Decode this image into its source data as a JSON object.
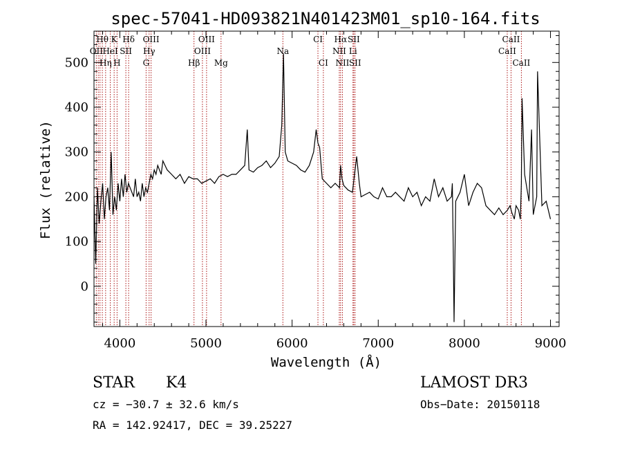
{
  "chart_data": {
    "type": "line",
    "title": "spec-57041-HD093821N401423M01_sp10-164.fits",
    "xlabel": "Wavelength (Å)",
    "ylabel": "Flux (relative)",
    "xlim": [
      3700,
      9100
    ],
    "ylim": [
      -90,
      570
    ],
    "x_ticks": [
      4000,
      5000,
      6000,
      7000,
      8000,
      9000
    ],
    "y_ticks": [
      0,
      100,
      200,
      300,
      400,
      500
    ],
    "grid": false,
    "series": [
      {
        "x": [
          3700,
          3720,
          3740,
          3760,
          3780,
          3800,
          3820,
          3840,
          3860,
          3880,
          3900,
          3920,
          3940,
          3960,
          3980,
          4000,
          4020,
          4040,
          4060,
          4080,
          4100,
          4120,
          4140,
          4160,
          4180,
          4200,
          4220,
          4240,
          4260,
          4280,
          4300,
          4320,
          4340,
          4360,
          4380,
          4400,
          4420,
          4440,
          4460,
          4480,
          4500,
          4550,
          4600,
          4650,
          4700,
          4750,
          4800,
          4850,
          4900,
          4950,
          5000,
          5050,
          5100,
          5150,
          5200,
          5250,
          5300,
          5350,
          5400,
          5450,
          5480,
          5500,
          5550,
          5600,
          5650,
          5700,
          5750,
          5800,
          5850,
          5880,
          5900,
          5920,
          5950,
          6000,
          6050,
          6100,
          6150,
          6200,
          6250,
          6280,
          6300,
          6320,
          6350,
          6400,
          6450,
          6500,
          6550,
          6563,
          6580,
          6600,
          6650,
          6700,
          6750,
          6780,
          6800,
          6850,
          6900,
          6950,
          7000,
          7050,
          7100,
          7150,
          7200,
          7250,
          7300,
          7350,
          7400,
          7450,
          7500,
          7550,
          7600,
          7650,
          7700,
          7750,
          7800,
          7850,
          7860,
          7870,
          7880,
          7900,
          7950,
          8000,
          8050,
          8100,
          8150,
          8200,
          8250,
          8300,
          8350,
          8400,
          8450,
          8500,
          8530,
          8550,
          8580,
          8600,
          8630,
          8650,
          8662,
          8670,
          8700,
          8750,
          8780,
          8800,
          8840,
          8850,
          8900,
          8950,
          9000
        ],
        "y": [
          200,
          50,
          220,
          140,
          190,
          230,
          150,
          200,
          220,
          170,
          300,
          160,
          200,
          170,
          230,
          190,
          240,
          200,
          250,
          210,
          230,
          220,
          210,
          200,
          240,
          200,
          210,
          190,
          230,
          200,
          220,
          210,
          230,
          250,
          240,
          260,
          250,
          270,
          260,
          250,
          280,
          260,
          250,
          240,
          250,
          230,
          245,
          240,
          240,
          230,
          235,
          240,
          230,
          245,
          250,
          245,
          250,
          250,
          260,
          270,
          350,
          260,
          255,
          265,
          270,
          280,
          265,
          275,
          290,
          360,
          520,
          300,
          280,
          275,
          270,
          260,
          255,
          270,
          300,
          350,
          320,
          310,
          240,
          230,
          220,
          230,
          220,
          270,
          240,
          225,
          215,
          210,
          290,
          230,
          200,
          205,
          210,
          200,
          195,
          220,
          200,
          200,
          210,
          200,
          190,
          220,
          200,
          210,
          180,
          200,
          190,
          240,
          200,
          220,
          190,
          200,
          230,
          100,
          -80,
          190,
          210,
          250,
          180,
          210,
          230,
          220,
          180,
          170,
          160,
          175,
          160,
          170,
          180,
          165,
          150,
          180,
          170,
          150,
          230,
          420,
          250,
          190,
          350,
          160,
          200,
          480,
          180,
          190,
          150
        ]
      }
    ],
    "line_labels": [
      {
        "text": "Hθ",
        "x": 3797,
        "row": 0
      },
      {
        "text": "OII",
        "x": 3727,
        "row": 1
      },
      {
        "text": "Hη",
        "x": 3835,
        "row": 2
      },
      {
        "text": "K",
        "x": 3934,
        "row": 0
      },
      {
        "text": "HeI",
        "x": 3889,
        "row": 1
      },
      {
        "text": "SII",
        "x": 4070,
        "row": 1
      },
      {
        "text": "H",
        "x": 3968,
        "row": 2
      },
      {
        "text": "Hδ",
        "x": 4102,
        "row": 0
      },
      {
        "text": "OIII",
        "x": 4363,
        "row": 0
      },
      {
        "text": "Hγ",
        "x": 4340,
        "row": 1
      },
      {
        "text": "G",
        "x": 4305,
        "row": 2
      },
      {
        "text": "OIII",
        "x": 5007,
        "row": 0
      },
      {
        "text": "OIII",
        "x": 4959,
        "row": 1
      },
      {
        "text": "Hβ",
        "x": 4861,
        "row": 2
      },
      {
        "text": "Mg",
        "x": 5175,
        "row": 2
      },
      {
        "text": "Na",
        "x": 5893,
        "row": 1
      },
      {
        "text": "CI",
        "x": 6300,
        "row": 0
      },
      {
        "text": "CI",
        "x": 6363,
        "row": 2
      },
      {
        "text": "Hα",
        "x": 6563,
        "row": 0
      },
      {
        "text": "SII",
        "x": 6716,
        "row": 0
      },
      {
        "text": "NII",
        "x": 6548,
        "row": 1
      },
      {
        "text": "Li",
        "x": 6707,
        "row": 1
      },
      {
        "text": "NII",
        "x": 6584,
        "row": 2
      },
      {
        "text": "SII",
        "x": 6731,
        "row": 2
      },
      {
        "text": "CaII",
        "x": 8542,
        "row": 0
      },
      {
        "text": "CaII",
        "x": 8498,
        "row": 1
      },
      {
        "text": "CaII",
        "x": 8662,
        "row": 2
      }
    ],
    "line_marker_x": [
      3727,
      3750,
      3770,
      3797,
      3835,
      3889,
      3934,
      3968,
      4070,
      4102,
      4305,
      4340,
      4363,
      4861,
      4959,
      5007,
      5175,
      5893,
      6300,
      6363,
      6548,
      6563,
      6584,
      6707,
      6716,
      6731,
      8498,
      8542,
      8662
    ]
  },
  "info": {
    "class_label": "STAR",
    "subclass_label": "K4",
    "survey_label": "LAMOST DR3",
    "cz_text": "cz = −30.7 ± 32.6 km/s",
    "obs_date_text": "Obs−Date: 20150118",
    "radec_text": "RA = 142.92417, DEC =  39.25227"
  },
  "colors": {
    "spectrum": "#000000",
    "marker_line": "#aa1111"
  }
}
